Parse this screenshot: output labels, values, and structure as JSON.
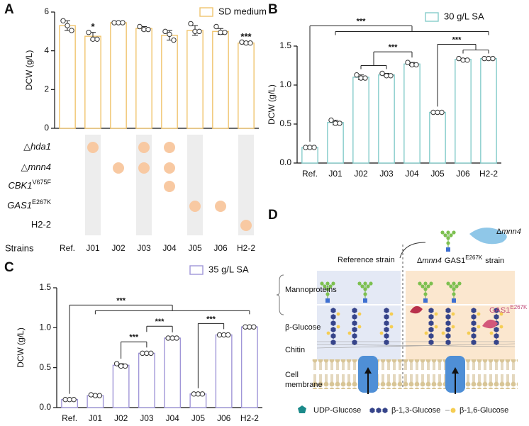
{
  "panel_labels": [
    "A",
    "B",
    "C",
    "D"
  ],
  "chart_data": [
    {
      "type": "bar",
      "ylabel": "DCW (g/L)",
      "categories": [
        "Ref.",
        "J01",
        "J02",
        "J03",
        "J04",
        "J05",
        "J06",
        "H2-2"
      ],
      "series": [
        {
          "name": "SD medium",
          "color": "#f0c46e",
          "values": [
            5.3,
            4.75,
            5.45,
            5.15,
            4.8,
            5.05,
            5.0,
            4.4
          ],
          "errors": [
            0.25,
            0.2,
            0.05,
            0.1,
            0.25,
            0.25,
            0.15,
            0.05
          ],
          "points": [
            [
              5.55,
              5.3,
              5.05
            ],
            [
              4.95,
              4.6,
              4.6
            ],
            [
              5.45,
              5.45,
              5.45
            ],
            [
              5.25,
              5.1,
              5.1
            ],
            [
              5.0,
              4.85,
              4.55
            ],
            [
              5.4,
              5.0,
              5.0
            ],
            [
              5.25,
              4.95,
              4.95
            ],
            [
              4.45,
              4.4,
              4.4
            ]
          ]
        }
      ],
      "ylim": [
        0,
        6
      ],
      "yticks": [
        0,
        2,
        4,
        6
      ],
      "stars": [
        null,
        "*",
        null,
        null,
        null,
        null,
        null,
        "***"
      ],
      "genotype": {
        "row_title": "Strains",
        "dot_color": "#f8c9a2",
        "shade_color": "#ededed",
        "shaded": [
          false,
          true,
          false,
          true,
          false,
          true,
          false,
          true
        ],
        "rows": [
          {
            "prefix": "△",
            "name": "hda1",
            "italic": true,
            "present": [
              false,
              true,
              false,
              true,
              true,
              false,
              false,
              false
            ]
          },
          {
            "prefix": "△",
            "name": "mnn4",
            "italic": true,
            "present": [
              false,
              false,
              true,
              true,
              true,
              false,
              false,
              false
            ]
          },
          {
            "name": "CBK1",
            "superscript": "V675F",
            "italic": true,
            "present": [
              false,
              false,
              false,
              false,
              true,
              false,
              false,
              false
            ]
          },
          {
            "name": "GAS1",
            "superscript": "E267K",
            "italic": true,
            "present": [
              false,
              false,
              false,
              false,
              false,
              true,
              true,
              false
            ]
          },
          {
            "name": "H2-2",
            "italic": false,
            "present": [
              false,
              false,
              false,
              false,
              false,
              false,
              false,
              true
            ]
          }
        ]
      }
    },
    {
      "type": "bar",
      "ylabel": "DCW (g/L)",
      "categories": [
        "Ref.",
        "J01",
        "J02",
        "J03",
        "J04",
        "J05",
        "J06",
        "H2-2"
      ],
      "series": [
        {
          "name": "30 g/L SA",
          "color": "#86cccb",
          "values": [
            0.2,
            0.52,
            1.1,
            1.13,
            1.27,
            0.65,
            1.33,
            1.34
          ],
          "errors": [
            0.01,
            0.03,
            0.03,
            0.02,
            0.02,
            0.01,
            0.01,
            0.01
          ],
          "points": [
            [
              0.2,
              0.2,
              0.2
            ],
            [
              0.55,
              0.51,
              0.51
            ],
            [
              1.13,
              1.09,
              1.09
            ],
            [
              1.15,
              1.12,
              1.12
            ],
            [
              1.29,
              1.26,
              1.26
            ],
            [
              0.65,
              0.65,
              0.65
            ],
            [
              1.34,
              1.32,
              1.32
            ],
            [
              1.34,
              1.34,
              1.34
            ]
          ]
        }
      ],
      "ylim": [
        0,
        1.5
      ],
      "yticks": [
        {
          "value": 0,
          "label": "0.0"
        },
        0.5,
        {
          "value": 1,
          "label": "1.0"
        },
        1.5
      ],
      "brackets": [
        {
          "text": "***",
          "left": [
            "J05"
          ],
          "right": [
            "J06",
            "H2-2"
          ]
        },
        {
          "text": "***",
          "left": [
            "J02",
            "J03"
          ],
          "right": [
            "J04"
          ]
        },
        {
          "text": "***",
          "left": [
            "Ref."
          ],
          "right": [
            "J01",
            "H2-2"
          ]
        }
      ]
    },
    {
      "type": "bar",
      "ylabel": "DCW (g/L)",
      "categories": [
        "Ref.",
        "J01",
        "J02",
        "J03",
        "J04",
        "J05",
        "J06",
        "H2-2"
      ],
      "series": [
        {
          "name": "35 g/L SA",
          "color": "#a096d8",
          "values": [
            0.1,
            0.15,
            0.53,
            0.68,
            0.87,
            0.17,
            0.91,
            1.01
          ],
          "errors": [
            0.01,
            0.01,
            0.02,
            0.01,
            0.01,
            0.01,
            0.01,
            0.01
          ],
          "points": [
            [
              0.1,
              0.1,
              0.1
            ],
            [
              0.16,
              0.15,
              0.15
            ],
            [
              0.55,
              0.52,
              0.52
            ],
            [
              0.68,
              0.68,
              0.68
            ],
            [
              0.87,
              0.87,
              0.87
            ],
            [
              0.17,
              0.17,
              0.17
            ],
            [
              0.91,
              0.91,
              0.91
            ],
            [
              1.01,
              1.01,
              1.01
            ]
          ]
        }
      ],
      "ylim": [
        0,
        1.5
      ],
      "yticks": [
        {
          "value": 0,
          "label": "0.0"
        },
        0.5,
        {
          "value": 1,
          "label": "1.0"
        },
        1.5
      ],
      "brackets": [
        {
          "text": "***",
          "left": [
            "J02"
          ],
          "right": [
            "J03"
          ]
        },
        {
          "text": "***",
          "left": [
            "J03"
          ],
          "right": [
            "J04"
          ]
        },
        {
          "text": "***",
          "left": [
            "J05"
          ],
          "right": [
            "J06"
          ]
        },
        {
          "text": "***",
          "left": [
            "Ref."
          ],
          "right": [
            "J01",
            "H2-2"
          ]
        }
      ]
    }
  ],
  "diagram": {
    "knockout": {
      "prefix": "Δ",
      "gene": "mnn4"
    },
    "reference": "Reference strain",
    "mutant": {
      "prefix": "Δ",
      "gene": "mnn4",
      "gene2": "GAS1",
      "superscript": "E267K",
      "suffix": "strain"
    },
    "layers": [
      "Mannoproteins",
      "β-Glucose",
      "Chitin",
      "Cell",
      "membrane"
    ],
    "enzyme": {
      "name": "GAS1",
      "superscript": "E267K"
    },
    "legend": [
      "UDP-Glucose",
      "β-1,3-Glucose",
      "β-1,6-Glucose"
    ]
  }
}
